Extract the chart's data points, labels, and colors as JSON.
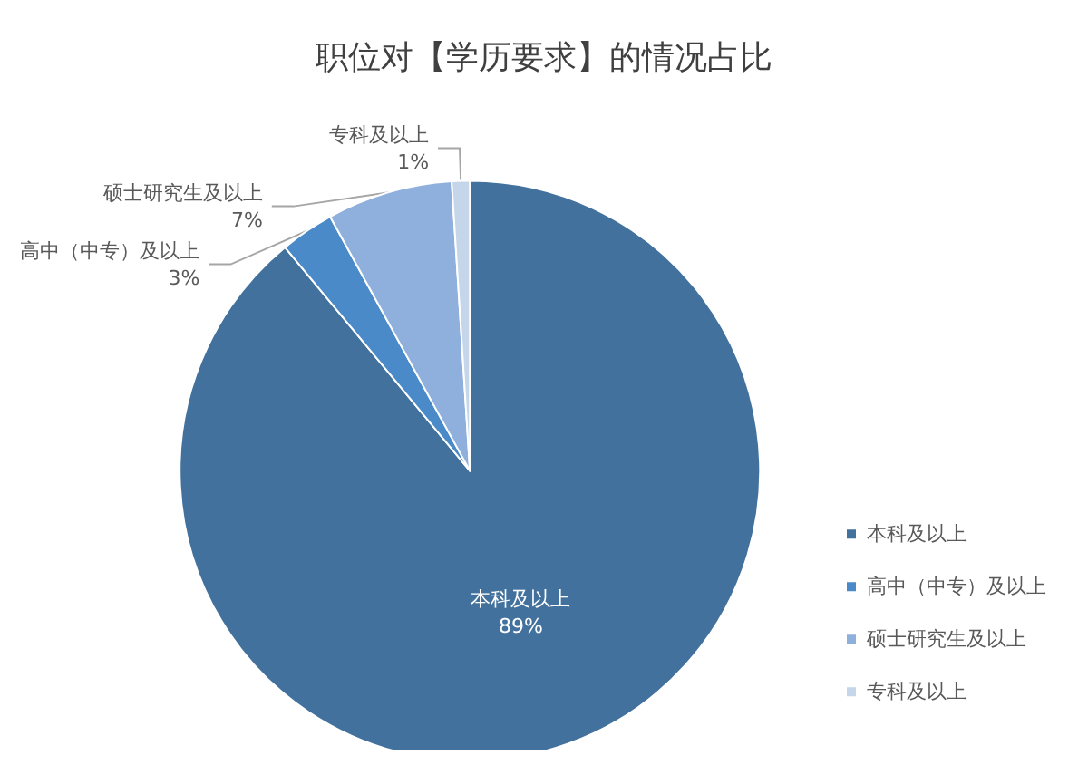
{
  "chart_data": {
    "type": "pie",
    "title": "职位对【学历要求】的情况占比",
    "categories": [
      "本科及以上",
      "高中（中专）及以上",
      "硕士研究生及以上",
      "专科及以上"
    ],
    "values": [
      89,
      3,
      7,
      1
    ],
    "colors": [
      "#41719c",
      "#4a8ac9",
      "#8fb0dc",
      "#c5d5ea"
    ],
    "value_labels": [
      "89%",
      "3%",
      "7%",
      "1%"
    ],
    "legend": "right"
  }
}
